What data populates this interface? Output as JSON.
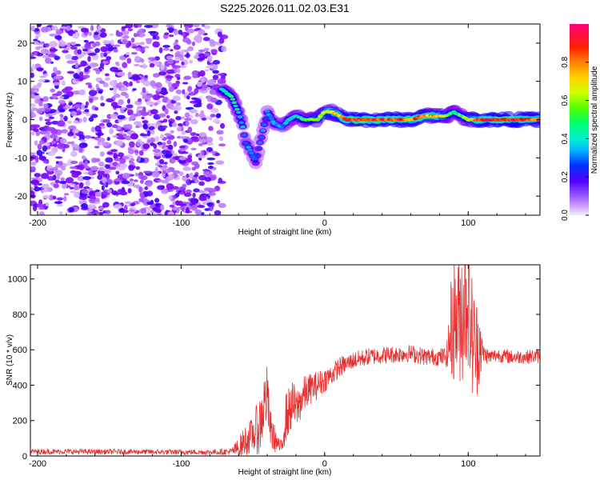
{
  "chart_data": [
    {
      "type": "heatmap",
      "title": "S225.2026.011.02.03.E31",
      "xlabel": "Height of straight line (km)",
      "ylabel": "Frequency (Hz)",
      "xlim": [
        -205,
        150
      ],
      "ylim": [
        -25,
        25
      ],
      "xticks": [
        -200,
        -100,
        0,
        100
      ],
      "yticks": [
        -20,
        -10,
        0,
        10,
        20
      ],
      "colorbar": {
        "label": "Normalized spectral amplitude",
        "range": [
          0.0,
          1.0
        ],
        "ticks": [
          "0.0",
          "0.2",
          "0.4",
          "0.6",
          "0.8"
        ],
        "colormap": [
          "#f0e8ff",
          "#8000ff",
          "#0000ff",
          "#00c8ff",
          "#00ff80",
          "#a0ff00",
          "#ffff00",
          "#ff8000",
          "#ff0000",
          "#ff0080"
        ]
      },
      "noise_region": {
        "x_range": [
          -205,
          -70
        ],
        "freq_range": [
          -25,
          25
        ],
        "amplitude": 0.1
      },
      "ridge": {
        "x": [
          -72,
          -65,
          -60,
          -57,
          -55,
          -52,
          -48,
          -40,
          -35,
          -30,
          -25,
          -20,
          -15,
          -10,
          -5,
          0,
          5,
          10,
          15,
          20,
          30,
          40,
          50,
          60,
          70,
          80,
          85,
          90,
          95,
          100,
          105,
          110,
          120,
          130,
          140,
          150
        ],
        "freq": [
          8,
          6,
          2,
          -2,
          -6,
          -8,
          -11,
          2,
          -1,
          -2,
          0,
          1,
          0,
          0,
          0,
          2,
          2,
          1,
          0,
          0,
          0,
          0,
          0,
          0,
          1,
          1,
          1,
          2,
          1,
          0,
          0,
          0,
          0,
          0,
          0,
          0
        ],
        "amplitude": [
          0.4,
          0.45,
          0.4,
          0.35,
          0.3,
          0.3,
          0.25,
          0.3,
          0.35,
          0.3,
          0.35,
          0.4,
          0.45,
          0.5,
          0.55,
          0.6,
          0.65,
          0.7,
          0.85,
          0.9,
          0.9,
          0.85,
          0.85,
          0.8,
          0.8,
          0.7,
          0.55,
          0.45,
          0.5,
          0.6,
          0.75,
          0.85,
          0.9,
          0.9,
          0.85,
          0.8
        ]
      }
    },
    {
      "type": "line",
      "title": "",
      "xlabel": "Height of straight line (km)",
      "ylabel": "SNR (10 * v/v)",
      "xlim": [
        -205,
        150
      ],
      "ylim": [
        0,
        1080
      ],
      "xticks": [
        -200,
        -100,
        0,
        100
      ],
      "yticks": [
        0,
        200,
        400,
        600,
        800,
        1000
      ],
      "color": "#e83030",
      "series": [
        {
          "name": "SNR",
          "x": [
            -205,
            -180,
            -160,
            -140,
            -120,
            -100,
            -80,
            -65,
            -60,
            -55,
            -50,
            -45,
            -42,
            -40,
            -38,
            -35,
            -32,
            -30,
            -28,
            -25,
            -22,
            -20,
            -15,
            -10,
            -5,
            0,
            5,
            10,
            15,
            20,
            25,
            30,
            40,
            50,
            60,
            70,
            80,
            85,
            88,
            90,
            92,
            95,
            98,
            100,
            102,
            105,
            108,
            110,
            115,
            120,
            130,
            140,
            150
          ],
          "y": [
            25,
            25,
            24,
            24,
            23,
            22,
            22,
            25,
            45,
            90,
            120,
            180,
            300,
            350,
            150,
            100,
            60,
            40,
            200,
            250,
            300,
            260,
            340,
            380,
            400,
            430,
            460,
            500,
            520,
            540,
            550,
            560,
            570,
            575,
            580,
            560,
            560,
            560,
            700,
            800,
            750,
            820,
            900,
            950,
            700,
            600,
            650,
            580,
            560,
            570,
            560,
            560,
            565
          ],
          "noise": [
            15,
            15,
            15,
            15,
            15,
            15,
            15,
            20,
            60,
            90,
            100,
            180,
            180,
            170,
            120,
            80,
            40,
            50,
            150,
            140,
            130,
            120,
            110,
            90,
            80,
            70,
            60,
            60,
            50,
            50,
            50,
            50,
            50,
            50,
            50,
            50,
            50,
            60,
            300,
            380,
            350,
            420,
            480,
            450,
            380,
            300,
            250,
            60,
            40,
            40,
            40,
            40,
            40
          ]
        }
      ]
    }
  ]
}
